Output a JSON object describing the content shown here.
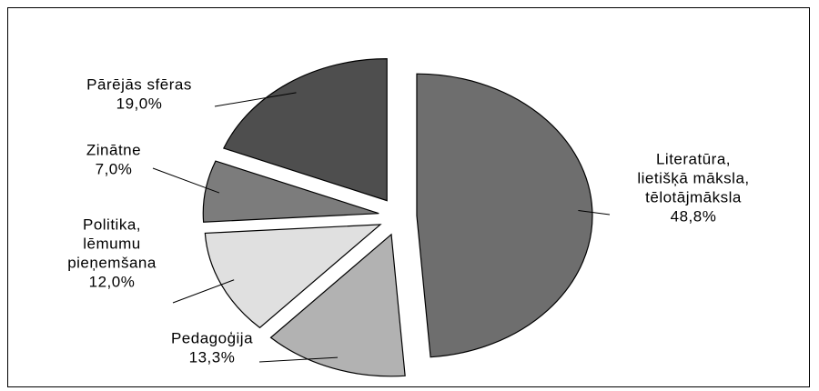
{
  "chart_data": {
    "type": "pie",
    "title": "",
    "slices": [
      {
        "lines": [
          "Literatūra,",
          "lietišķā māksla,",
          "tēlotājmāksla",
          "48,8%"
        ],
        "value": 48.8,
        "color": "#6e6e6e"
      },
      {
        "lines": [
          "Pedagoģija",
          "13,3%"
        ],
        "value": 13.3,
        "color": "#b2b2b2"
      },
      {
        "lines": [
          "Politika,",
          "lēmumu",
          "pieņemšana",
          "12,0%"
        ],
        "value": 12.0,
        "color": "#e0e0e0"
      },
      {
        "lines": [
          "Zinātne",
          "7,0%"
        ],
        "value": 7.0,
        "color": "#7c7c7c"
      },
      {
        "lines": [
          "Pārējās sfēras",
          "19,0%"
        ],
        "value": 19.0,
        "color": "#4e4e4e"
      }
    ],
    "exploded": true,
    "start_angle_deg": 0,
    "direction": "clockwise",
    "legend": "none"
  }
}
